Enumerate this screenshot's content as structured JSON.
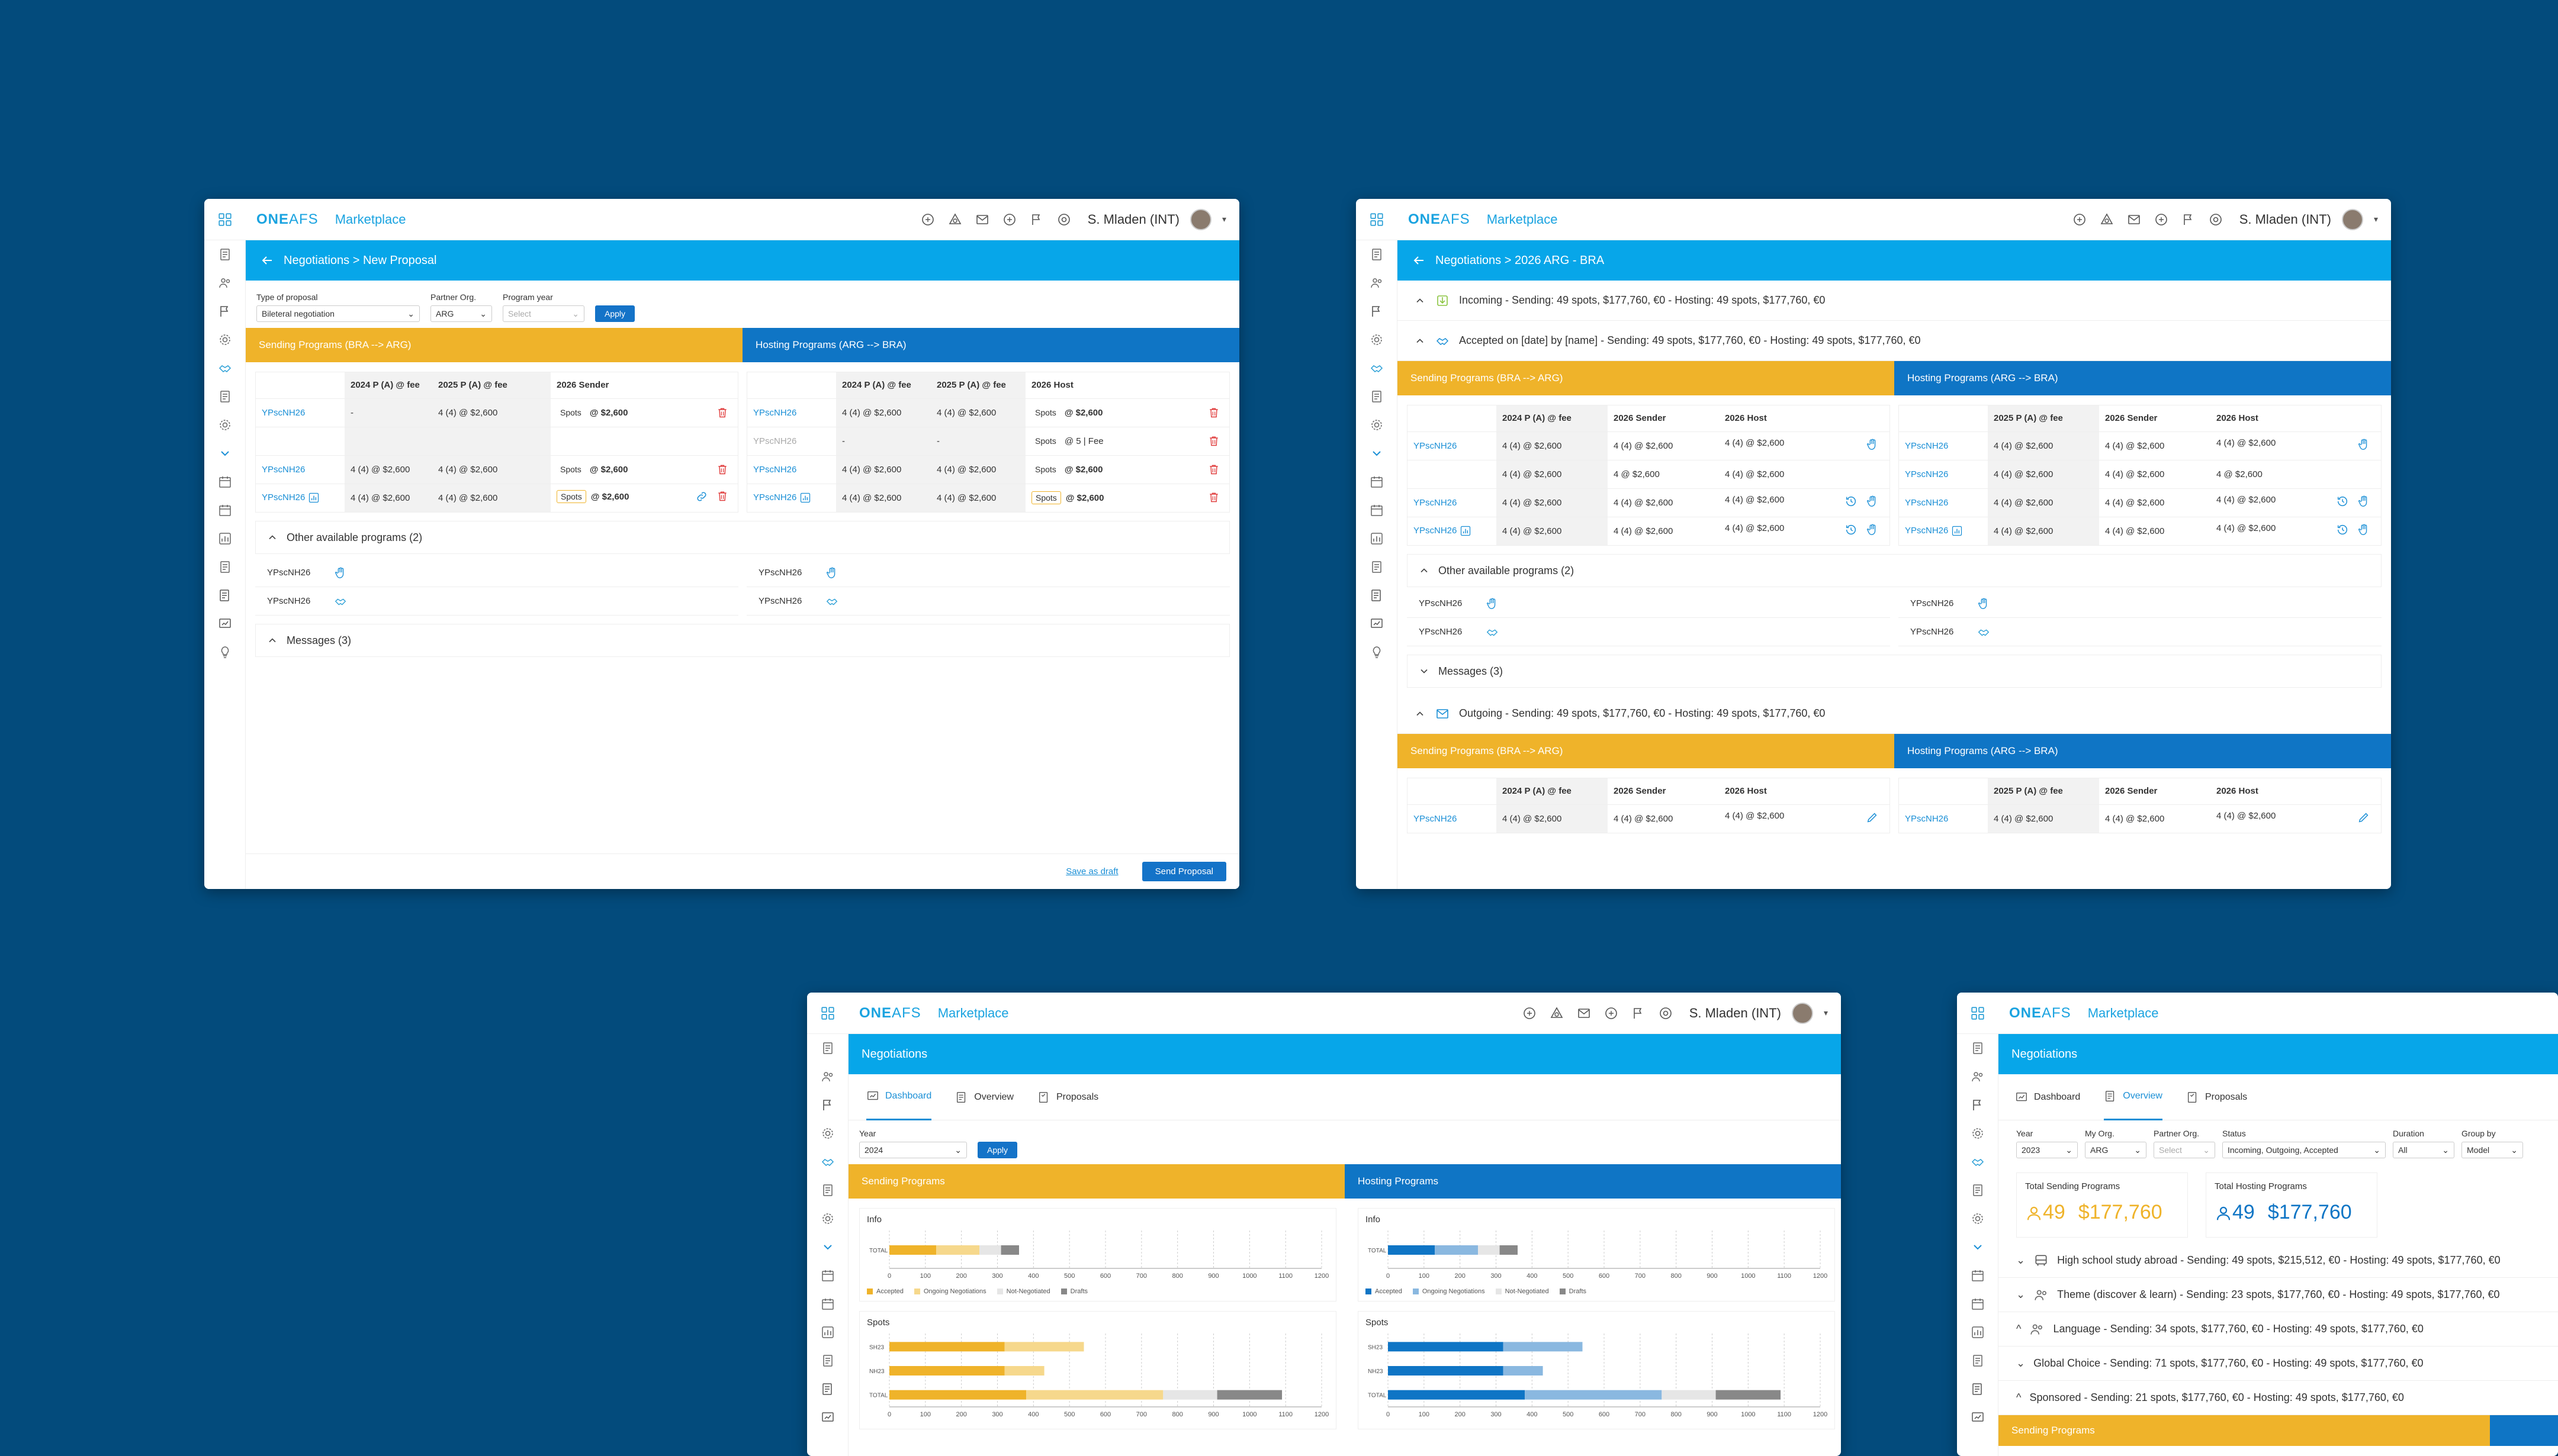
{
  "common": {
    "logo_bold": "ONE",
    "logo_light": "AFS",
    "app_name": "Marketplace",
    "user_name": "S. Mladen (INT)"
  },
  "win1": {
    "breadcrumb": "Negotiations > New Proposal",
    "filters": {
      "type_label": "Type of proposal",
      "type_value": "Bileteral negotiation",
      "partner_label": "Partner Org.",
      "partner_value": "ARG",
      "year_label": "Program year",
      "year_placeholder": "Select",
      "apply": "Apply"
    },
    "sending_band": "Sending Programs (BRA --> ARG)",
    "hosting_band": "Hosting Programs (ARG --> BRA)",
    "sending_headers": [
      "",
      "2024 P (A) @ fee",
      "2025 P (A) @ fee",
      "2026 Sender"
    ],
    "hosting_headers": [
      "",
      "2024 P (A) @ fee",
      "2025 P (A) @ fee",
      "2026 Host"
    ],
    "sending_rows": [
      {
        "name": "YPscNH26",
        "c1": "-",
        "c2": "4 (4)  @ $2,600",
        "spots": "Spots",
        "fee": "@ $2,600"
      },
      {
        "name": "",
        "c1": "",
        "c2": "",
        "spots": "",
        "fee": ""
      },
      {
        "name": "YPscNH26",
        "c1": "4 (4)  @ $2,600",
        "c2": "4 (4)  @ $2,600",
        "spots": "Spots",
        "fee": "@ $2,600"
      },
      {
        "name": "YPscNH26",
        "c1": "4 (4)  @ $2,600",
        "c2": "4 (4)  @ $2,600",
        "spots": "Spots",
        "fee": "@ $2,600"
      }
    ],
    "hosting_rows": [
      {
        "name": "YPscNH26",
        "c1": "4 (4)  @ $2,600",
        "c2": "4 (4)  @ $2,600",
        "spots": "Spots",
        "fee": "@ $2,600"
      },
      {
        "name": "YPscNH26",
        "c1": "-",
        "c2": "-",
        "spots": "Spots",
        "fee": "@   5  | Fee"
      },
      {
        "name": "YPscNH26",
        "c1": "4 (4)  @ $2,600",
        "c2": "4 (4)  @ $2,600",
        "spots": "Spots",
        "fee": "@ $2,600"
      },
      {
        "name": "YPscNH26",
        "c1": "4 (4)  @ $2,600",
        "c2": "4 (4)  @ $2,600",
        "spots": "Spots",
        "fee": "@ $2,600"
      }
    ],
    "other_programs": "Other available programs (2)",
    "other_items": [
      "YPscNH26",
      "YPscNH26"
    ],
    "messages": "Messages (3)",
    "save_draft": "Save as draft",
    "send_proposal": "Send Proposal"
  },
  "win2": {
    "breadcrumb": "Negotiations > 2026 ARG - BRA",
    "incoming": "Incoming - Sending: 49 spots, $177,760, €0 - Hosting: 49 spots, $177,760, €0",
    "accepted": "Accepted on [date] by [name] - Sending: 49 spots, $177,760, €0 - Hosting: 49 spots, $177,760, €0",
    "sending_band": "Sending Programs (BRA --> ARG)",
    "hosting_band": "Hosting Programs (ARG --> BRA)",
    "sending_headers": [
      "",
      "2024 P (A) @ fee",
      "2026 Sender",
      "2026 Host"
    ],
    "hosting_headers": [
      "",
      "2025 P (A) @ fee",
      "2026 Sender",
      "2026 Host"
    ],
    "rows": [
      {
        "name": "YPscNH26",
        "c1": "4 (4)  @ $2,600",
        "c2": "4 (4)  @ $2,600",
        "c3": "4 (4)  @ $2,600"
      },
      {
        "name": "",
        "c1": "4 (4)  @ $2,600",
        "c2": "4        @ $2,600",
        "c3": "4 (4)  @ $2,600"
      },
      {
        "name": "YPscNH26",
        "c1": "4 (4)  @ $2,600",
        "c2": "4 (4)  @ $2,600",
        "c3": "4 (4)  @ $2,600"
      },
      {
        "name": "YPscNH26",
        "c1": "4 (4)  @ $2,600",
        "c2": "4 (4)  @ $2,600",
        "c3": "4 (4)  @ $2,600"
      }
    ],
    "host_rows": [
      {
        "name": "YPscNH26",
        "c1": "4 (4)  @ $2,600",
        "c2": "4 (4)  @ $2,600",
        "c3": "4 (4)  @ $2,600"
      },
      {
        "name": "YPscNH26",
        "c1": "4 (4)  @ $2,600",
        "c2": "4 (4)  @ $2,600",
        "c3": "4        @ $2,600"
      },
      {
        "name": "YPscNH26",
        "c1": "4 (4)  @ $2,600",
        "c2": "4 (4)  @ $2,600",
        "c3": "4 (4)  @ $2,600"
      },
      {
        "name": "YPscNH26",
        "c1": "4 (4)  @ $2,600",
        "c2": "4 (4)  @ $2,600",
        "c3": "4 (4)  @ $2,600"
      }
    ],
    "other_programs": "Other available programs (2)",
    "other_items": [
      "YPscNH26",
      "YPscNH26"
    ],
    "messages": "Messages (3)",
    "outgoing": "Outgoing - Sending: 49 spots, $177,760, €0 - Hosting: 49 spots, $177,760, €0",
    "out_sending_headers": [
      "",
      "2024 P (A) @ fee",
      "2026 Sender",
      "2026 Host"
    ],
    "out_hosting_headers": [
      "",
      "2025 P (A) @ fee",
      "2026 Sender",
      "2026 Host"
    ],
    "out_row": {
      "name": "YPscNH26",
      "c1": "4 (4)  @ $2,600",
      "c2": "4 (4)  @ $2,600",
      "c3": "4 (4)  @ $2,600"
    }
  },
  "win3": {
    "title": "Negotiations",
    "tabs": [
      "Dashboard",
      "Overview",
      "Proposals"
    ],
    "year_label": "Year",
    "year_value": "2024",
    "apply": "Apply",
    "sending_band": "Sending Programs",
    "hosting_band": "Hosting Programs",
    "info_title": "Info",
    "spots_title": "Spots",
    "legend": [
      "Accepted",
      "Ongoing Negotiations",
      "Not-Negotiated",
      "Drafts"
    ]
  },
  "win4": {
    "title": "Negotiations",
    "tabs": [
      "Dashboard",
      "Overview",
      "Proposals"
    ],
    "filters": [
      {
        "label": "Year",
        "value": "2023"
      },
      {
        "label": "My Org.",
        "value": "ARG"
      },
      {
        "label": "Partner Org.",
        "value": "Select"
      },
      {
        "label": "Status",
        "value": "Incoming, Outgoing, Accepted"
      },
      {
        "label": "Duration",
        "value": "All"
      },
      {
        "label": "Group by",
        "value": "Model"
      }
    ],
    "kpi_sending_label": "Total Sending Programs",
    "kpi_sending_count": "49",
    "kpi_sending_amount": "$177,760",
    "kpi_hosting_label": "Total Hosting Programs",
    "kpi_hosting_count": "49",
    "kpi_hosting_amount": "$177,760",
    "groups": [
      "High school study abroad - Sending: 49 spots, $215,512, €0 - Hosting: 49 spots, $177,760, €0",
      "Theme (discover & learn) - Sending: 23 spots, $177,760, €0 - Hosting: 49 spots, $177,760, €0",
      "Language - Sending: 34 spots, $177,760, €0 - Hosting: 49 spots, $177,760, €0",
      "Global Choice - Sending: 71 spots, $177,760, €0 - Hosting: 49 spots, $177,760, €0",
      "Sponsored - Sending: 21 spots, $177,760, €0 - Hosting: 49 spots, $177,760, €0"
    ],
    "sending_band": "Sending Programs"
  },
  "colors": {
    "background": "#034b7c",
    "primary": "#07a6e9",
    "sending": "#efb32a",
    "hosting": "#0f75c5",
    "link": "#1a8fd6",
    "danger": "#e03c3c"
  },
  "chart_data": [
    {
      "type": "bar",
      "title": "Info",
      "orientation": "horizontal-stacked",
      "categories": [
        "TOTAL"
      ],
      "series": [
        {
          "name": "Accepted",
          "values": [
            130
          ]
        },
        {
          "name": "Ongoing Negotiations",
          "values": [
            120
          ]
        },
        {
          "name": "Not-Negotiated",
          "values": [
            60
          ]
        },
        {
          "name": "Drafts",
          "values": [
            50
          ]
        }
      ],
      "x_ticks": [
        0,
        100,
        200,
        300,
        400,
        500,
        600,
        700,
        800,
        900,
        1000,
        1100,
        1200
      ],
      "xlim": [
        0,
        1200
      ]
    },
    {
      "type": "bar",
      "title": "Spots",
      "orientation": "horizontal-stacked",
      "categories": [
        "SH23",
        "NH23",
        "TOTAL"
      ],
      "series": [
        {
          "name": "Accepted",
          "values": [
            320,
            320,
            380
          ]
        },
        {
          "name": "Ongoing Negotiations",
          "values": [
            220,
            110,
            380
          ]
        },
        {
          "name": "Not-Negotiated",
          "values": [
            0,
            0,
            150
          ]
        },
        {
          "name": "Drafts",
          "values": [
            0,
            0,
            180
          ]
        }
      ],
      "x_ticks": [
        0,
        100,
        200,
        300,
        400,
        500,
        600,
        700,
        800,
        900,
        1000,
        1100,
        1200
      ],
      "xlim": [
        0,
        1200
      ]
    }
  ]
}
